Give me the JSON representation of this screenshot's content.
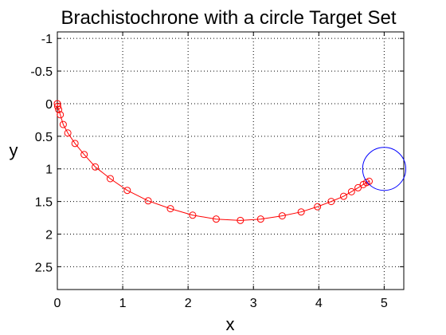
{
  "chart_data": {
    "type": "line",
    "title": "Brachistochrone with a circle Target Set",
    "xlabel": "x",
    "ylabel": "y",
    "xlim": [
      0,
      5.3
    ],
    "ylim": [
      -1.1,
      2.85
    ],
    "y_reversed": true,
    "grid": true,
    "xticks": [
      0,
      1,
      2,
      3,
      4,
      5
    ],
    "xtick_labels": [
      "0",
      "1",
      "2",
      "3",
      "4",
      "5"
    ],
    "yticks": [
      -1,
      -0.5,
      0,
      0.5,
      1,
      1.5,
      2,
      2.5
    ],
    "ytick_labels": [
      "-1",
      "-0.5",
      "0",
      "0.5",
      "1",
      "1.5",
      "2",
      "2.5"
    ],
    "series": [
      {
        "marker": "circle",
        "color": "#ff0000",
        "x": [
          0.0,
          0.005,
          0.02,
          0.045,
          0.09,
          0.16,
          0.27,
          0.41,
          0.58,
          0.81,
          1.07,
          1.39,
          1.73,
          2.07,
          2.43,
          2.8,
          3.11,
          3.44,
          3.73,
          3.98,
          4.19,
          4.38,
          4.5,
          4.6,
          4.68,
          4.73,
          4.77
        ],
        "y": [
          0.0,
          0.04,
          0.09,
          0.17,
          0.32,
          0.45,
          0.61,
          0.78,
          0.97,
          1.15,
          1.33,
          1.49,
          1.61,
          1.71,
          1.77,
          1.79,
          1.77,
          1.72,
          1.66,
          1.58,
          1.5,
          1.42,
          1.35,
          1.29,
          1.24,
          1.21,
          1.19
        ]
      }
    ],
    "target_circle": {
      "center": [
        5.0,
        1.0
      ],
      "radius": 0.33,
      "color": "#0000ff"
    }
  }
}
